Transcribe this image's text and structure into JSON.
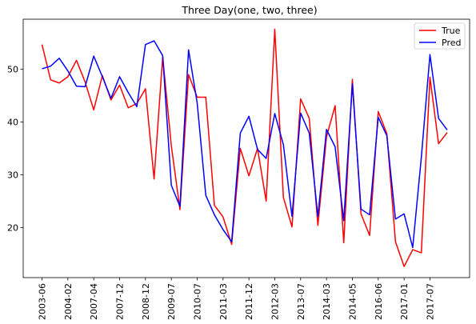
{
  "chart_data": {
    "type": "line",
    "title": "Three Day(one, two, three)",
    "xlabel": "",
    "ylabel": "",
    "ylim": [
      10.5,
      59.5
    ],
    "yticks": [
      20,
      30,
      40,
      50
    ],
    "grid": false,
    "legend_position": "top-right",
    "x_tick_labels": [
      "2003-06",
      "2004-02",
      "2007-04",
      "2007-12",
      "2008-12",
      "2009-07",
      "2010-07",
      "2011-03",
      "2011-12",
      "2012-03",
      "2013-07",
      "2014-03",
      "2014-05",
      "2016-06",
      "2017-01",
      "2017-07"
    ],
    "x_tick_every": 3,
    "series": [
      {
        "name": "True",
        "color": "#ff0000",
        "values": [
          54.7,
          48.0,
          47.4,
          48.6,
          51.7,
          47.6,
          42.3,
          48.8,
          44.2,
          47.0,
          42.7,
          43.5,
          46.3,
          29.2,
          52.4,
          35.5,
          23.4,
          49.0,
          44.7,
          44.7,
          24.2,
          22.0,
          16.8,
          35.0,
          29.8,
          35.0,
          25.0,
          57.6,
          25.7,
          20.1,
          44.4,
          40.7,
          20.4,
          37.2,
          43.1,
          17.1,
          48.1,
          22.6,
          18.5,
          42.0,
          37.8,
          17.3,
          12.6,
          15.8,
          15.2,
          48.5,
          35.9,
          38.0
        ]
      },
      {
        "name": "Pred",
        "color": "#0000ff",
        "values": [
          50.1,
          50.6,
          52.1,
          49.7,
          46.8,
          46.7,
          52.5,
          48.6,
          44.5,
          48.6,
          45.6,
          42.9,
          54.7,
          55.4,
          52.6,
          28.0,
          24.0,
          53.7,
          43.6,
          26.1,
          22.4,
          19.6,
          17.3,
          37.9,
          41.1,
          34.8,
          33.1,
          41.6,
          35.7,
          22.1,
          41.7,
          37.9,
          22.1,
          38.6,
          35.3,
          21.3,
          47.2,
          23.5,
          22.4,
          40.9,
          37.4,
          21.6,
          22.6,
          16.2,
          33.3,
          52.8,
          40.7,
          38.5
        ]
      }
    ]
  }
}
